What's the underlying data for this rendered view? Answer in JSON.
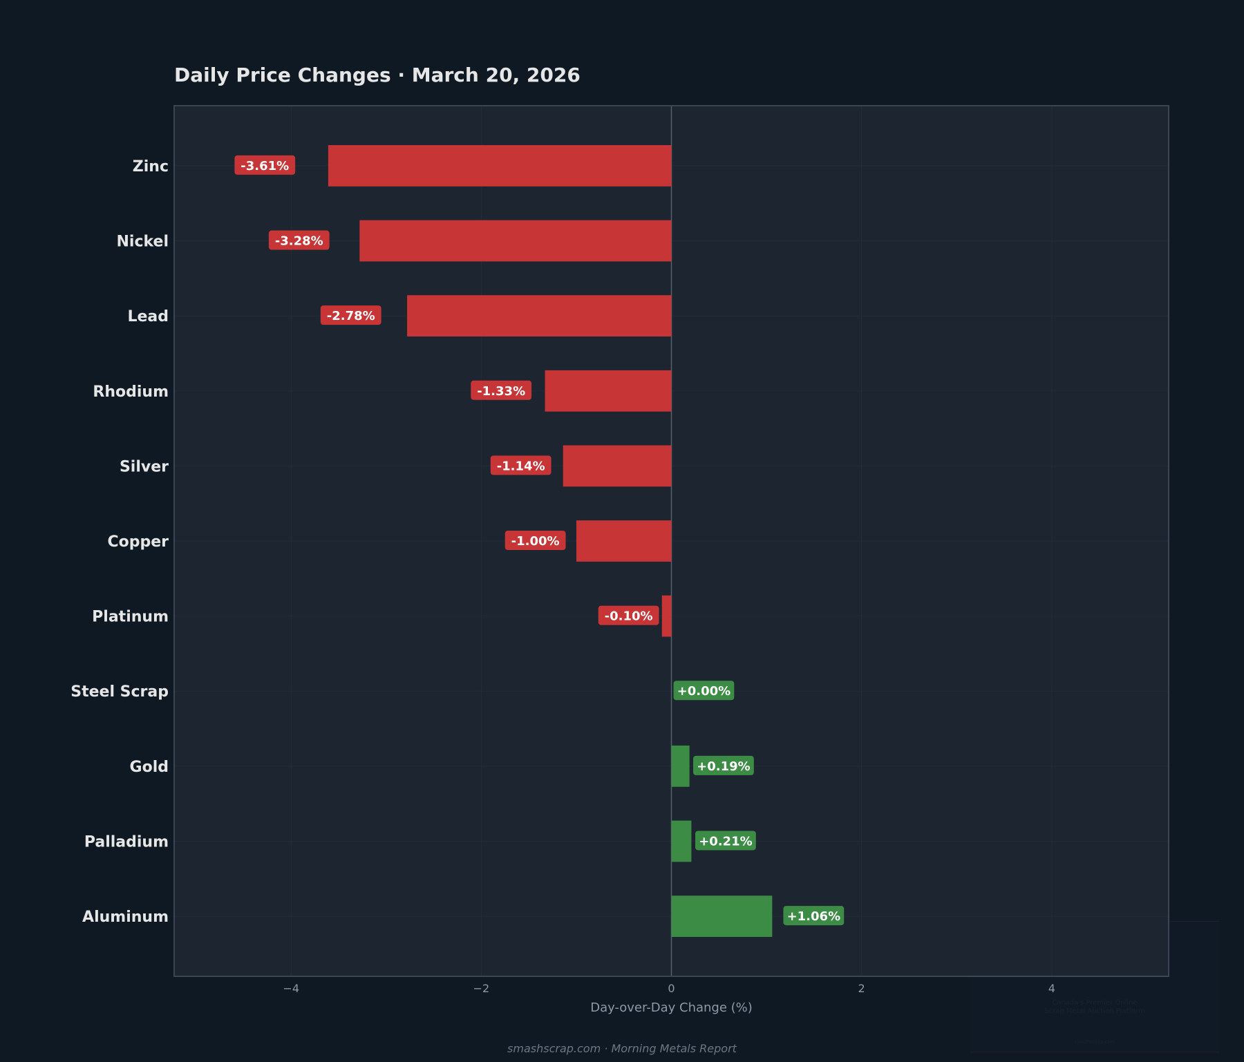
{
  "title": "Daily Price Changes  ·  March 20, 2026",
  "footer": "smashscrap.com  ·  Morning Metals Report",
  "watermark": {
    "line1": "Canada's Premier Online",
    "line2": "Scrap Metal Auction Platform",
    "site": "smashscrap.com"
  },
  "colors": {
    "negative": "#c73536",
    "positive": "#3d8c45",
    "background": "#0f1923",
    "plot_background": "#1c2530"
  },
  "chart_data": {
    "type": "bar",
    "orientation": "horizontal",
    "categories": [
      "Zinc",
      "Nickel",
      "Lead",
      "Rhodium",
      "Silver",
      "Copper",
      "Platinum",
      "Steel Scrap",
      "Gold",
      "Palladium",
      "Aluminum"
    ],
    "values": [
      -3.61,
      -3.28,
      -2.78,
      -1.33,
      -1.14,
      -1.0,
      -0.1,
      0.0,
      0.19,
      0.21,
      1.06
    ],
    "data_labels": [
      "-3.61%",
      "-3.28%",
      "-2.78%",
      "-1.33%",
      "-1.14%",
      "-1.00%",
      "-0.10%",
      "+0.00%",
      "+0.19%",
      "+0.21%",
      "+1.06%"
    ],
    "title": "Daily Price Changes  ·  March 20, 2026",
    "xlabel": "Day-over-Day Change (%)",
    "ylabel": "",
    "xlim": [
      -5.23,
      5.23
    ],
    "xticks": [
      -4,
      -2,
      0,
      2,
      4
    ],
    "xtick_labels": [
      "−4",
      "−2",
      "0",
      "2",
      "4"
    ],
    "grid": true,
    "legend": "none"
  }
}
